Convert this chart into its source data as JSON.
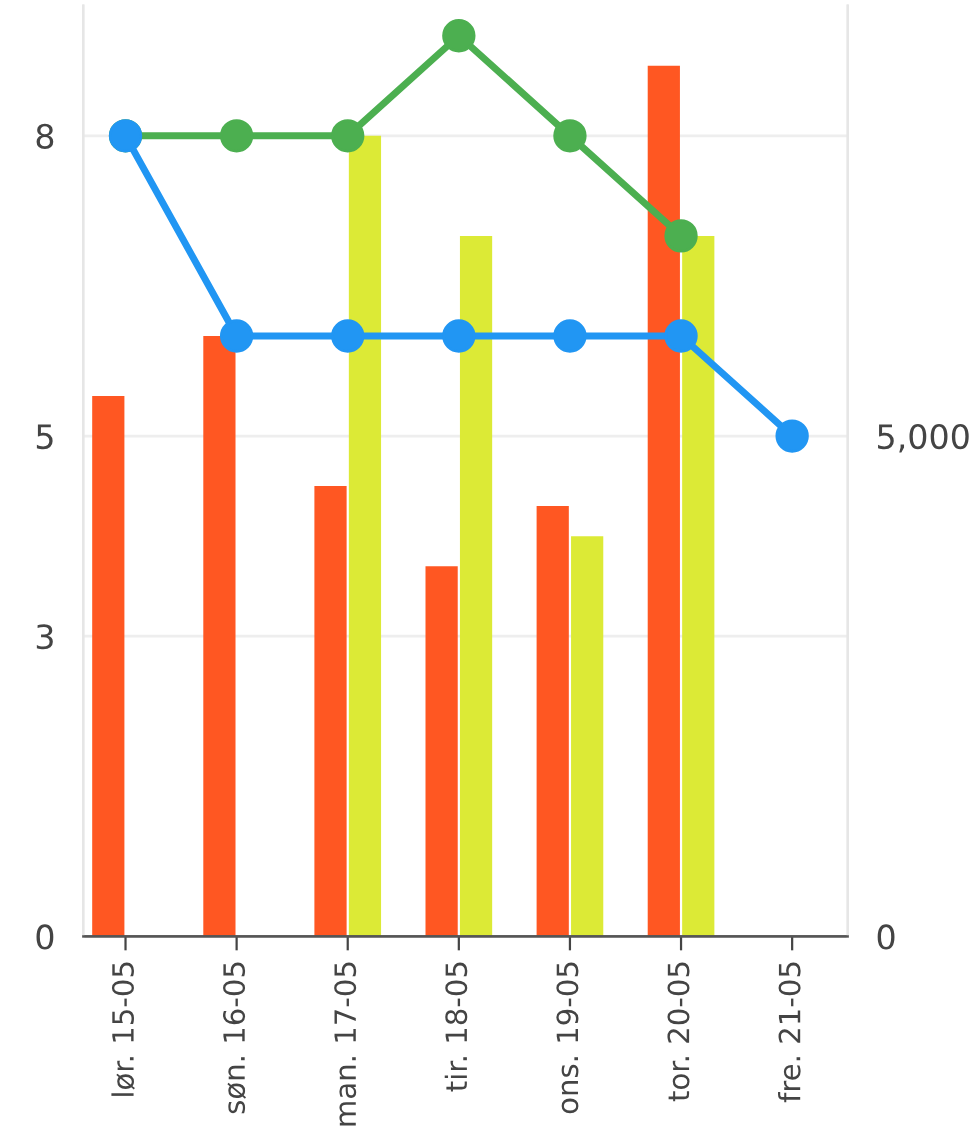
{
  "chart_data": {
    "type": "bar",
    "categories": [
      "lør. 15-05",
      "søn. 16-05",
      "man. 17-05",
      "tir. 18-05",
      "ons. 19-05",
      "tor. 20-05",
      "fre. 21-05"
    ],
    "series": [
      {
        "color": "#ff5722",
        "values": [
          5.4,
          6.0,
          4.5,
          3.7,
          4.3,
          8.7,
          null
        ]
      },
      {
        "color": "#dcea36",
        "values": [
          null,
          null,
          8.0,
          7.0,
          4.0,
          7.0,
          null
        ]
      },
      {
        "type": "line",
        "color": "#4caf50",
        "values": [
          8,
          8,
          8,
          9,
          8,
          7,
          null
        ]
      },
      {
        "type": "line",
        "color": "#2196f3",
        "axis": "y2",
        "values": [
          8000,
          6000,
          6000,
          6000,
          6000,
          6000,
          5000
        ]
      }
    ],
    "ylim": [
      0,
      9.3
    ],
    "yticks": [
      0,
      3,
      5,
      8
    ],
    "y2lim": [
      0,
      9300
    ],
    "y2ticks": [
      0,
      {
        "value": 5000,
        "label": "5,000"
      }
    ],
    "grid": "y",
    "marker": "circle",
    "line_style": "solid"
  }
}
